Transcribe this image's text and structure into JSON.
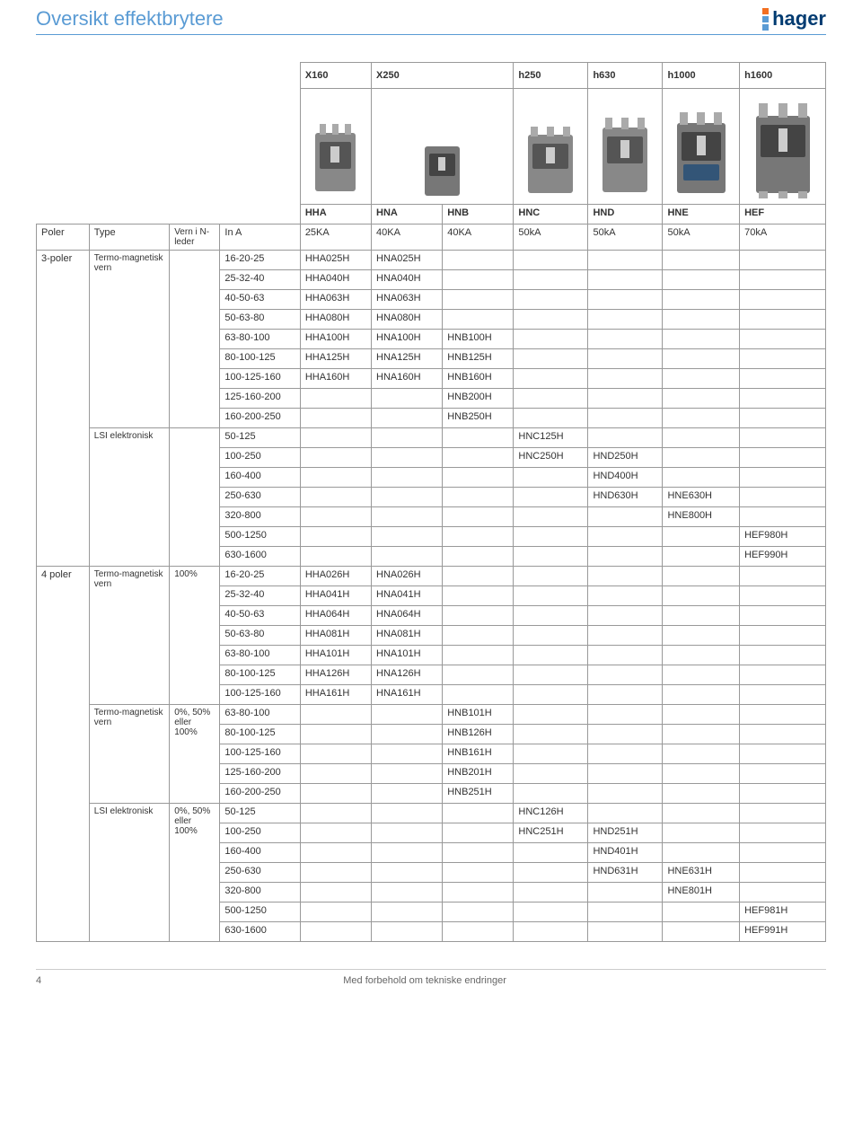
{
  "header": {
    "title": "Oversikt effektbrytere",
    "logo_text": "hager",
    "logo_dot_colors": [
      "#f36f21",
      "#5a9bd4",
      "#5a9bd4"
    ]
  },
  "table": {
    "model_headers": [
      "X160",
      "X250",
      "h250",
      "h630",
      "h1000",
      "h1600"
    ],
    "series_headers": [
      "HHA",
      "HNA",
      "HNB",
      "HNC",
      "HND",
      "HNE",
      "HEF"
    ],
    "col_labels": {
      "poler": "Poler",
      "type": "Type",
      "vern": "Vern i N-leder",
      "ina": "In A"
    },
    "ka_row": [
      "25KA",
      "40KA",
      "40KA",
      "50kA",
      "50kA",
      "50kA",
      "70kA"
    ],
    "rows": [
      {
        "poler": "3-poler",
        "type": "Termo-magnetisk vern",
        "vern": "",
        "ina": "16-20-25",
        "c": [
          "HHA025H",
          "HNA025H",
          "",
          "",
          "",
          "",
          ""
        ]
      },
      {
        "ina": "25-32-40",
        "c": [
          "HHA040H",
          "HNA040H",
          "",
          "",
          "",
          "",
          ""
        ]
      },
      {
        "ina": "40-50-63",
        "c": [
          "HHA063H",
          "HNA063H",
          "",
          "",
          "",
          "",
          ""
        ]
      },
      {
        "ina": "50-63-80",
        "c": [
          "HHA080H",
          "HNA080H",
          "",
          "",
          "",
          "",
          ""
        ]
      },
      {
        "ina": "63-80-100",
        "c": [
          "HHA100H",
          "HNA100H",
          "HNB100H",
          "",
          "",
          "",
          ""
        ]
      },
      {
        "ina": "80-100-125",
        "c": [
          "HHA125H",
          "HNA125H",
          "HNB125H",
          "",
          "",
          "",
          ""
        ]
      },
      {
        "ina": "100-125-160",
        "c": [
          "HHA160H",
          "HNA160H",
          "HNB160H",
          "",
          "",
          "",
          ""
        ]
      },
      {
        "ina": "125-160-200",
        "c": [
          "",
          "",
          "HNB200H",
          "",
          "",
          "",
          ""
        ]
      },
      {
        "ina": "160-200-250",
        "c": [
          "",
          "",
          "HNB250H",
          "",
          "",
          "",
          ""
        ]
      },
      {
        "type": "LSI elektronisk",
        "vern": "",
        "ina": "50-125",
        "c": [
          "",
          "",
          "",
          "HNC125H",
          "",
          "",
          ""
        ]
      },
      {
        "ina": "100-250",
        "c": [
          "",
          "",
          "",
          "HNC250H",
          "HND250H",
          "",
          ""
        ]
      },
      {
        "ina": "160-400",
        "c": [
          "",
          "",
          "",
          "",
          "HND400H",
          "",
          ""
        ]
      },
      {
        "ina": "250-630",
        "c": [
          "",
          "",
          "",
          "",
          "HND630H",
          "HNE630H",
          ""
        ]
      },
      {
        "ina": "320-800",
        "c": [
          "",
          "",
          "",
          "",
          "",
          "HNE800H",
          ""
        ]
      },
      {
        "ina": "500-1250",
        "c": [
          "",
          "",
          "",
          "",
          "",
          "",
          "HEF980H"
        ]
      },
      {
        "ina": "630-1600",
        "c": [
          "",
          "",
          "",
          "",
          "",
          "",
          "HEF990H"
        ]
      },
      {
        "poler": "4 poler",
        "type": "Termo-magnetisk vern",
        "vern": "100%",
        "ina": "16-20-25",
        "c": [
          "HHA026H",
          "HNA026H",
          "",
          "",
          "",
          "",
          ""
        ]
      },
      {
        "ina": "25-32-40",
        "c": [
          "HHA041H",
          "HNA041H",
          "",
          "",
          "",
          "",
          ""
        ]
      },
      {
        "ina": "40-50-63",
        "c": [
          "HHA064H",
          "HNA064H",
          "",
          "",
          "",
          "",
          ""
        ]
      },
      {
        "ina": "50-63-80",
        "c": [
          "HHA081H",
          "HNA081H",
          "",
          "",
          "",
          "",
          ""
        ]
      },
      {
        "ina": "63-80-100",
        "c": [
          "HHA101H",
          "HNA101H",
          "",
          "",
          "",
          "",
          ""
        ]
      },
      {
        "ina": "80-100-125",
        "c": [
          "HHA126H",
          "HNA126H",
          "",
          "",
          "",
          "",
          ""
        ]
      },
      {
        "ina": "100-125-160",
        "c": [
          "HHA161H",
          "HNA161H",
          "",
          "",
          "",
          "",
          ""
        ]
      },
      {
        "type": "Termo-magnetisk vern",
        "vern": "0%, 50% eller 100%",
        "ina": "63-80-100",
        "c": [
          "",
          "",
          "HNB101H",
          "",
          "",
          "",
          ""
        ]
      },
      {
        "ina": "80-100-125",
        "c": [
          "",
          "",
          "HNB126H",
          "",
          "",
          "",
          ""
        ]
      },
      {
        "ina": "100-125-160",
        "c": [
          "",
          "",
          "HNB161H",
          "",
          "",
          "",
          ""
        ]
      },
      {
        "ina": "125-160-200",
        "c": [
          "",
          "",
          "HNB201H",
          "",
          "",
          "",
          ""
        ]
      },
      {
        "ina": "160-200-250",
        "c": [
          "",
          "",
          "HNB251H",
          "",
          "",
          "",
          ""
        ]
      },
      {
        "type": "LSI elektronisk",
        "vern": "0%, 50% eller 100%",
        "ina": "50-125",
        "c": [
          "",
          "",
          "",
          "HNC126H",
          "",
          "",
          ""
        ]
      },
      {
        "ina": "100-250",
        "c": [
          "",
          "",
          "",
          "HNC251H",
          "HND251H",
          "",
          ""
        ]
      },
      {
        "ina": "160-400",
        "c": [
          "",
          "",
          "",
          "",
          "HND401H",
          "",
          ""
        ]
      },
      {
        "ina": "250-630",
        "c": [
          "",
          "",
          "",
          "",
          "HND631H",
          "HNE631H",
          ""
        ]
      },
      {
        "ina": "320-800",
        "c": [
          "",
          "",
          "",
          "",
          "",
          "HNE801H",
          ""
        ]
      },
      {
        "ina": "500-1250",
        "c": [
          "",
          "",
          "",
          "",
          "",
          "",
          "HEF981H"
        ]
      },
      {
        "ina": "630-1600",
        "c": [
          "",
          "",
          "",
          "",
          "",
          "",
          "HEF991H"
        ]
      }
    ]
  },
  "footer": {
    "page_number": "4",
    "disclaimer": "Med forbehold om tekniske endringer"
  }
}
